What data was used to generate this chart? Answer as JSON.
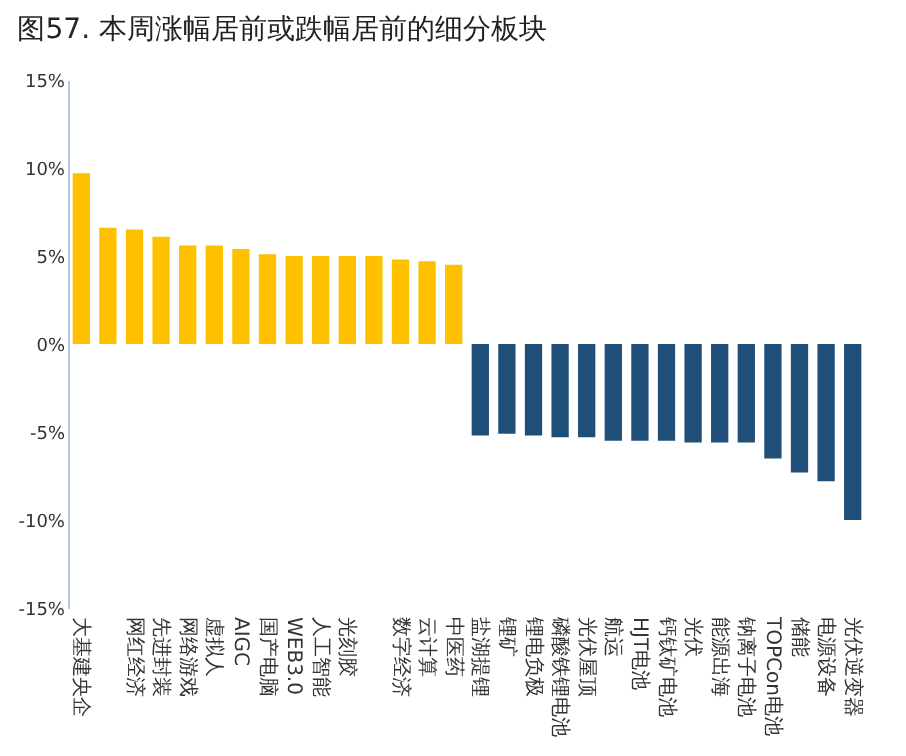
{
  "chart_data": {
    "type": "bar",
    "title": "图57. 本周涨幅居前或跌幅居前的细分板块",
    "categories": [
      "大基建央企",
      null,
      "网红经济",
      "先进封装",
      "网络游戏",
      "虚拟人",
      "AIGC",
      "国产电脑",
      "WEB3.0",
      "人工智能",
      "光刻胶",
      null,
      "数字经济",
      "云计算",
      "中医药",
      "盐湖提锂",
      "锂矿",
      "锂电负极",
      "磷酸铁锂电池",
      "光伏屋顶",
      "航运",
      "HJT电池",
      "钙钛矿电池",
      "光伏",
      "能源出海",
      "钠离子电池",
      "TOPCon电池",
      "储能",
      "电源设备",
      "光伏逆变器"
    ],
    "values": [
      9.7,
      6.6,
      6.5,
      6.1,
      5.6,
      5.6,
      5.4,
      5.1,
      5.0,
      5.0,
      5.0,
      5.0,
      4.8,
      4.7,
      4.5,
      -5.2,
      -5.1,
      -5.2,
      -5.3,
      -5.3,
      -5.5,
      -5.5,
      -5.5,
      -5.6,
      -5.6,
      -5.6,
      -6.5,
      -7.3,
      -7.8,
      -10.0
    ],
    "colors": [
      "#ffc000",
      "#ffc000",
      "#ffc000",
      "#ffc000",
      "#ffc000",
      "#ffc000",
      "#ffc000",
      "#ffc000",
      "#ffc000",
      "#ffc000",
      "#ffc000",
      "#ffc000",
      "#ffc000",
      "#ffc000",
      "#ffc000",
      "#1f4e79",
      "#1f4e79",
      "#1f4e79",
      "#1f4e79",
      "#1f4e79",
      "#1f4e79",
      "#1f4e79",
      "#1f4e79",
      "#1f4e79",
      "#1f4e79",
      "#1f4e79",
      "#1f4e79",
      "#1f4e79",
      "#1f4e79",
      "#1f4e79"
    ],
    "ylim": [
      -15,
      15
    ],
    "yticks": [
      {
        "value": -15,
        "label": "-15%"
      },
      {
        "value": -10,
        "label": "-10%"
      },
      {
        "value": -5,
        "label": "-5%"
      },
      {
        "value": 0,
        "label": "0%"
      },
      {
        "value": 5,
        "label": "5%"
      },
      {
        "value": 10,
        "label": "10%"
      },
      {
        "value": 15,
        "label": "15%"
      }
    ],
    "grid": false
  }
}
